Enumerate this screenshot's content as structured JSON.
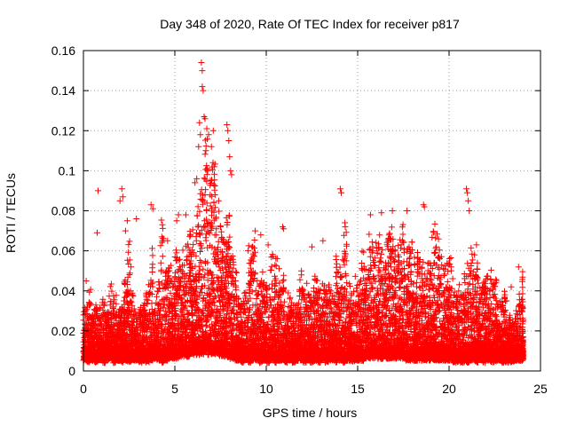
{
  "chart_data": {
    "type": "scatter",
    "title": "Day 348 of 2020, Rate Of TEC Index for receiver p817",
    "xlabel": "GPS time / hours",
    "ylabel": "ROTI / TECUs",
    "xlim": [
      0,
      25
    ],
    "ylim": [
      0,
      0.16
    ],
    "xticks": [
      "0",
      "5",
      "10",
      "15",
      "20",
      "25"
    ],
    "yticks": [
      "0",
      "0.02",
      "0.04",
      "0.06",
      "0.08",
      "0.1",
      "0.12",
      "0.14",
      "0.16"
    ],
    "grid": true,
    "marker": "plus",
    "color": "#ff0000",
    "series": [
      {
        "x": [
          0.0,
          0.2,
          0.4,
          0.6,
          0.8,
          1.0,
          1.2,
          1.4,
          1.6,
          1.8,
          2.0,
          2.2,
          2.4,
          2.6,
          2.8,
          3.0,
          3.2,
          3.4,
          3.6,
          3.8,
          4.0,
          4.2,
          4.4,
          4.6,
          4.8,
          5.0,
          5.2,
          5.4,
          5.6,
          5.8,
          6.0,
          6.2,
          6.4,
          6.6,
          6.8,
          7.0,
          7.2,
          7.4,
          7.6,
          7.8,
          8.0,
          8.2,
          8.4,
          8.6,
          8.8,
          9.0,
          9.2,
          9.4,
          9.6,
          9.8,
          10.0,
          10.2,
          10.4,
          10.6,
          10.8,
          11.0,
          11.2,
          11.4,
          11.6,
          11.8,
          12.0,
          12.2,
          12.4,
          12.6,
          12.8,
          13.0,
          13.2,
          13.4,
          13.6,
          13.8,
          14.0,
          14.2,
          14.4,
          14.6,
          14.8,
          15.0,
          15.2,
          15.4,
          15.6,
          15.8,
          16.0,
          16.2,
          16.4,
          16.6,
          16.8,
          17.0,
          17.2,
          17.4,
          17.6,
          17.8,
          18.0,
          18.2,
          18.4,
          18.6,
          18.8,
          19.0,
          19.2,
          19.4,
          19.6,
          19.8,
          20.0,
          20.2,
          20.4,
          20.6,
          20.8,
          21.0,
          21.2,
          21.4,
          21.6,
          21.8,
          22.0,
          22.2,
          22.4,
          22.6,
          22.8,
          23.0,
          23.2,
          23.4,
          23.6,
          23.8,
          24.0
        ],
        "y_low": [
          0.007,
          0.006,
          0.007,
          0.006,
          0.007,
          0.006,
          0.007,
          0.008,
          0.006,
          0.007,
          0.006,
          0.007,
          0.006,
          0.007,
          0.007,
          0.006,
          0.007,
          0.006,
          0.007,
          0.008,
          0.007,
          0.006,
          0.007,
          0.008,
          0.008,
          0.008,
          0.009,
          0.009,
          0.009,
          0.01,
          0.01,
          0.01,
          0.01,
          0.011,
          0.01,
          0.01,
          0.01,
          0.009,
          0.009,
          0.008,
          0.008,
          0.007,
          0.007,
          0.006,
          0.007,
          0.006,
          0.007,
          0.007,
          0.006,
          0.007,
          0.006,
          0.007,
          0.006,
          0.007,
          0.007,
          0.006,
          0.007,
          0.006,
          0.007,
          0.007,
          0.006,
          0.007,
          0.006,
          0.007,
          0.006,
          0.007,
          0.006,
          0.007,
          0.007,
          0.006,
          0.007,
          0.006,
          0.007,
          0.006,
          0.007,
          0.007,
          0.007,
          0.008,
          0.008,
          0.008,
          0.008,
          0.008,
          0.008,
          0.008,
          0.008,
          0.008,
          0.008,
          0.008,
          0.007,
          0.007,
          0.007,
          0.007,
          0.007,
          0.007,
          0.007,
          0.007,
          0.007,
          0.007,
          0.007,
          0.007,
          0.007,
          0.006,
          0.006,
          0.006,
          0.006,
          0.006,
          0.007,
          0.006,
          0.007,
          0.006,
          0.007,
          0.006,
          0.006,
          0.007,
          0.006,
          0.006,
          0.006,
          0.006,
          0.007,
          0.007,
          0.007
        ],
        "y_high": [
          0.03,
          0.04,
          0.03,
          0.035,
          0.032,
          0.036,
          0.03,
          0.044,
          0.038,
          0.03,
          0.04,
          0.045,
          0.068,
          0.04,
          0.03,
          0.032,
          0.034,
          0.045,
          0.06,
          0.035,
          0.045,
          0.075,
          0.05,
          0.052,
          0.047,
          0.06,
          0.058,
          0.06,
          0.065,
          0.072,
          0.075,
          0.082,
          0.09,
          0.12,
          0.1,
          0.105,
          0.085,
          0.088,
          0.07,
          0.088,
          0.06,
          0.058,
          0.038,
          0.034,
          0.04,
          0.062,
          0.07,
          0.044,
          0.052,
          0.045,
          0.042,
          0.058,
          0.06,
          0.052,
          0.05,
          0.03,
          0.04,
          0.032,
          0.034,
          0.05,
          0.042,
          0.045,
          0.038,
          0.05,
          0.042,
          0.045,
          0.04,
          0.044,
          0.038,
          0.058,
          0.058,
          0.072,
          0.045,
          0.04,
          0.048,
          0.045,
          0.06,
          0.05,
          0.072,
          0.062,
          0.07,
          0.062,
          0.055,
          0.07,
          0.072,
          0.062,
          0.068,
          0.075,
          0.06,
          0.068,
          0.055,
          0.06,
          0.058,
          0.05,
          0.06,
          0.07,
          0.075,
          0.065,
          0.055,
          0.055,
          0.058,
          0.048,
          0.045,
          0.04,
          0.048,
          0.052,
          0.062,
          0.055,
          0.042,
          0.045,
          0.048,
          0.05,
          0.045,
          0.038,
          0.034,
          0.04,
          0.028,
          0.025,
          0.03,
          0.038,
          0.048
        ]
      }
    ],
    "outliers": [
      [
        0.15,
        0.045
      ],
      [
        0.75,
        0.069
      ],
      [
        0.8,
        0.09
      ],
      [
        2.0,
        0.085
      ],
      [
        2.1,
        0.091
      ],
      [
        2.15,
        0.087
      ],
      [
        2.3,
        0.07
      ],
      [
        2.4,
        0.075
      ],
      [
        2.6,
        0.052
      ],
      [
        2.9,
        0.076
      ],
      [
        3.7,
        0.083
      ],
      [
        3.8,
        0.081
      ],
      [
        4.6,
        0.065
      ],
      [
        5.1,
        0.075
      ],
      [
        5.2,
        0.078
      ],
      [
        5.6,
        0.078
      ],
      [
        6.1,
        0.094
      ],
      [
        6.2,
        0.096
      ],
      [
        6.3,
        0.112
      ],
      [
        6.35,
        0.124
      ],
      [
        6.4,
        0.118
      ],
      [
        6.45,
        0.154
      ],
      [
        6.5,
        0.15
      ],
      [
        6.5,
        0.142
      ],
      [
        6.55,
        0.14
      ],
      [
        6.6,
        0.127
      ],
      [
        6.65,
        0.126
      ],
      [
        6.7,
        0.11
      ],
      [
        6.8,
        0.1
      ],
      [
        6.85,
        0.118
      ],
      [
        7.0,
        0.112
      ],
      [
        7.1,
        0.12
      ],
      [
        7.15,
        0.102
      ],
      [
        7.2,
        0.088
      ],
      [
        7.4,
        0.085
      ],
      [
        7.5,
        0.072
      ],
      [
        7.85,
        0.123
      ],
      [
        7.9,
        0.12
      ],
      [
        7.95,
        0.115
      ],
      [
        8.0,
        0.107
      ],
      [
        8.05,
        0.1
      ],
      [
        8.1,
        0.098
      ],
      [
        9.4,
        0.07
      ],
      [
        9.7,
        0.068
      ],
      [
        10.1,
        0.063
      ],
      [
        10.9,
        0.072
      ],
      [
        10.95,
        0.071
      ],
      [
        12.5,
        0.062
      ],
      [
        13.1,
        0.065
      ],
      [
        14.05,
        0.091
      ],
      [
        14.1,
        0.089
      ],
      [
        14.3,
        0.074
      ],
      [
        15.7,
        0.078
      ],
      [
        16.3,
        0.079
      ],
      [
        16.9,
        0.08
      ],
      [
        17.7,
        0.08
      ],
      [
        18.6,
        0.083
      ],
      [
        18.65,
        0.082
      ],
      [
        19.3,
        0.062
      ],
      [
        20.95,
        0.091
      ],
      [
        21.0,
        0.089
      ],
      [
        21.05,
        0.085
      ],
      [
        21.1,
        0.08
      ],
      [
        21.5,
        0.063
      ],
      [
        23.0,
        0.028
      ],
      [
        23.4,
        0.042
      ],
      [
        23.8,
        0.052
      ]
    ]
  }
}
